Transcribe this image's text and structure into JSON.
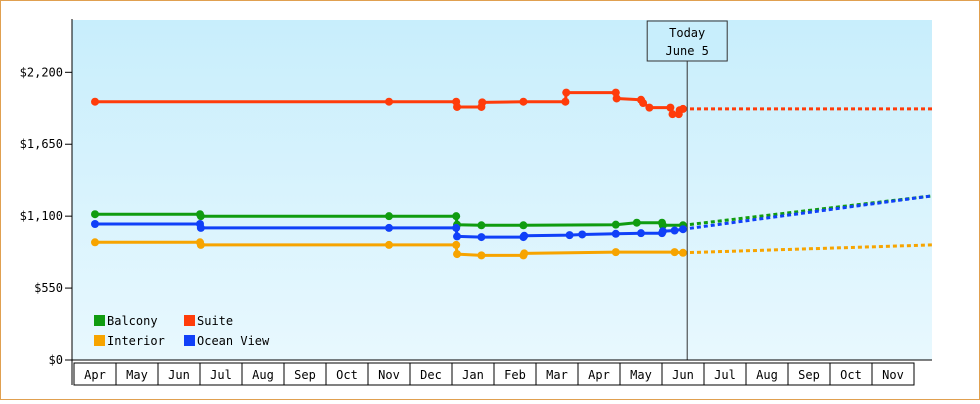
{
  "chart_data": {
    "type": "line",
    "title": "",
    "xlabel": "",
    "ylabel": "",
    "ylim": [
      0,
      2600
    ],
    "y_ticks": [
      {
        "value": 0,
        "label": "$0"
      },
      {
        "value": 550,
        "label": "$550"
      },
      {
        "value": 1100,
        "label": "$1,100"
      },
      {
        "value": 1650,
        "label": "$1,650"
      },
      {
        "value": 2200,
        "label": "$2,200"
      }
    ],
    "x_start": 0,
    "x_end": 20.6,
    "months": [
      "Apr",
      "May",
      "Jun",
      "Jul",
      "Aug",
      "Sep",
      "Oct",
      "Nov",
      "Dec",
      "Jan",
      "Feb",
      "Mar",
      "Apr",
      "May",
      "Jun",
      "Jul",
      "Aug",
      "Sep",
      "Oct",
      "Nov"
    ],
    "today": {
      "x": 14.1,
      "line1": "Today",
      "line2": "June 5"
    },
    "legend": {
      "placement": "bottom-left"
    },
    "grid": false,
    "background": {
      "top": "#c8eefc",
      "bottom": "#e8f8fe"
    },
    "series": [
      {
        "name": "Balcony",
        "color": "#109c10",
        "projection_end": 1255,
        "points": [
          [
            0,
            1115
          ],
          [
            2.5,
            1115
          ],
          [
            2.52,
            1100
          ],
          [
            7,
            1100
          ],
          [
            8.6,
            1100
          ],
          [
            8.62,
            1035
          ],
          [
            9.2,
            1030
          ],
          [
            10.2,
            1030
          ],
          [
            12.4,
            1035
          ],
          [
            12.9,
            1050
          ],
          [
            13.5,
            1050
          ],
          [
            13.52,
            1030
          ],
          [
            14.0,
            1030
          ]
        ]
      },
      {
        "name": "Suite",
        "color": "#ff3c0a",
        "projection_end": 1920,
        "points": [
          [
            0,
            1975
          ],
          [
            7,
            1975
          ],
          [
            8.6,
            1975
          ],
          [
            8.62,
            1935
          ],
          [
            9.2,
            1935
          ],
          [
            9.22,
            1970
          ],
          [
            10.2,
            1975
          ],
          [
            11.2,
            1975
          ],
          [
            11.22,
            2045
          ],
          [
            12.4,
            2045
          ],
          [
            12.42,
            2000
          ],
          [
            13.0,
            1990
          ],
          [
            13.05,
            1965
          ],
          [
            13.2,
            1930
          ],
          [
            13.7,
            1930
          ],
          [
            13.75,
            1880
          ],
          [
            13.9,
            1880
          ],
          [
            13.92,
            1910
          ],
          [
            14.0,
            1920
          ]
        ]
      },
      {
        "name": "Interior",
        "color": "#f7a400",
        "projection_end": 880,
        "points": [
          [
            0,
            900
          ],
          [
            2.5,
            900
          ],
          [
            2.52,
            880
          ],
          [
            7,
            880
          ],
          [
            8.6,
            880
          ],
          [
            8.62,
            810
          ],
          [
            9.2,
            800
          ],
          [
            10.2,
            800
          ],
          [
            10.22,
            815
          ],
          [
            12.4,
            825
          ],
          [
            13.8,
            825
          ],
          [
            14.0,
            820
          ]
        ]
      },
      {
        "name": "Ocean View",
        "color": "#1040f8",
        "projection_end": 1255,
        "points": [
          [
            0,
            1040
          ],
          [
            2.5,
            1040
          ],
          [
            2.52,
            1010
          ],
          [
            7,
            1010
          ],
          [
            8.6,
            1010
          ],
          [
            8.62,
            945
          ],
          [
            9.2,
            940
          ],
          [
            10.2,
            940
          ],
          [
            10.22,
            950
          ],
          [
            11.3,
            955
          ],
          [
            11.6,
            960
          ],
          [
            12.4,
            965
          ],
          [
            13.0,
            970
          ],
          [
            13.5,
            970
          ],
          [
            13.52,
            985
          ],
          [
            13.8,
            990
          ],
          [
            14.0,
            1000
          ]
        ]
      }
    ]
  }
}
